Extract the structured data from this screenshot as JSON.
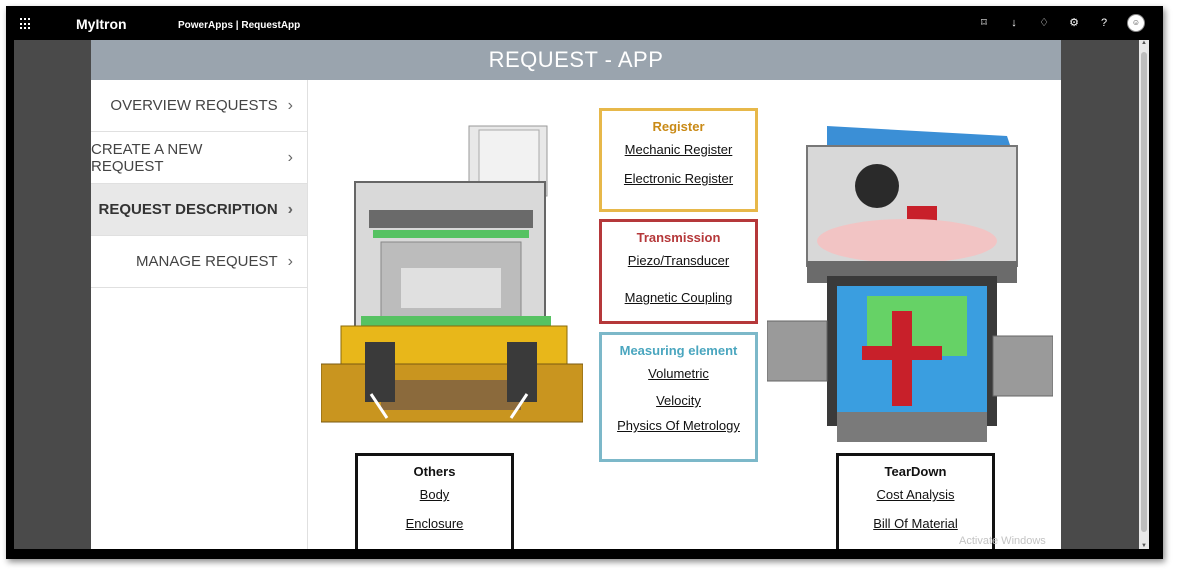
{
  "topbar": {
    "brand": "MyItron",
    "app_path": "PowerApps | RequestApp",
    "icons": [
      "waffle-icon",
      "window-icon",
      "download-icon",
      "bell-icon",
      "gear-icon",
      "help-icon",
      "avatar"
    ]
  },
  "header": {
    "title": "REQUEST - APP"
  },
  "nav": {
    "items": [
      {
        "label": "OVERVIEW REQUESTS",
        "active": false
      },
      {
        "label": "CREATE A NEW REQUEST",
        "active": false
      },
      {
        "label": "REQUEST DESCRIPTION",
        "active": true
      },
      {
        "label": "MANAGE REQUEST",
        "active": false
      }
    ]
  },
  "boxes": {
    "register": {
      "title": "Register",
      "links": [
        "Mechanic Register",
        "Electronic Register"
      ]
    },
    "transmission": {
      "title": "Transmission",
      "links": [
        "Piezo/Transducer",
        "Magnetic Coupling"
      ]
    },
    "measuring": {
      "title": "Measuring element",
      "links": [
        "Volumetric",
        "Velocity",
        "Physics Of Metrology"
      ]
    },
    "others": {
      "title": "Others",
      "links": [
        "Body",
        "Enclosure"
      ]
    },
    "teardown": {
      "title": "TearDown",
      "links": [
        "Cost Analysis",
        "Bill Of Material"
      ]
    }
  },
  "watermark": "Activate Windows",
  "colors": {
    "register": "#e7b84a",
    "transmission": "#b5383a",
    "measuring": "#7cb8c9",
    "header": "#9aa4ae"
  }
}
